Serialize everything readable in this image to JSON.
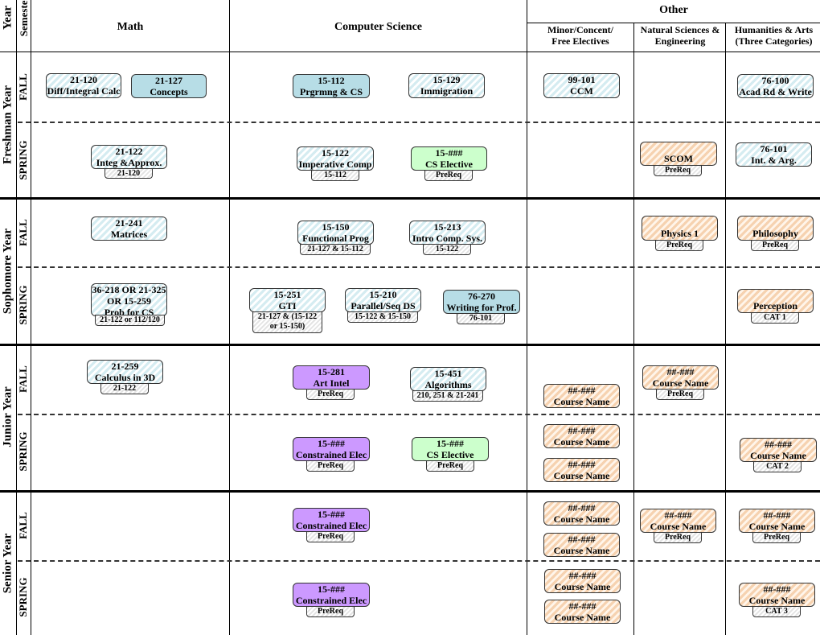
{
  "headers": {
    "year": "Year",
    "semester": "Semester",
    "math": "Math",
    "cs": "Computer Science",
    "other": "Other",
    "minor": "Minor/Concent/ Free Electives",
    "natsci": "Natural Sciences & Engineering",
    "hum": "Humanities & Arts (Three Categories)"
  },
  "years": {
    "freshman": "Freshman Year",
    "sophomore": "Sophomore Year",
    "junior": "Junior Year",
    "senior": "Senior Year"
  },
  "semesters": {
    "fall": "FALL",
    "spring": "SPRING"
  },
  "courses": {
    "f_fall_math1": {
      "code": "21-120",
      "name": "Diff/Integral Calc"
    },
    "f_fall_math2": {
      "code": "21-127",
      "name": "Concepts"
    },
    "f_fall_cs1": {
      "code": "15-112",
      "name": "Prgrmng & CS"
    },
    "f_fall_cs2": {
      "code": "15-129",
      "name": "Immigration"
    },
    "f_fall_minor": {
      "code": "99-101",
      "name": "CCM"
    },
    "f_fall_hum": {
      "code": "76-100",
      "name": "Acad Rd & Write"
    },
    "f_spr_math": {
      "code": "21-122",
      "name": "Integ &Approx.",
      "prereq": "21-120"
    },
    "f_spr_cs1": {
      "code": "15-122",
      "name": "Imperative Comp",
      "prereq": "15-112"
    },
    "f_spr_cs2": {
      "code": "15-###",
      "name": "CS Elective",
      "prereq": "PreReq"
    },
    "f_spr_nat": {
      "code": "",
      "name": "SCOM",
      "prereq": "PreReq"
    },
    "f_spr_hum": {
      "code": "76-101",
      "name": "Int. & Arg."
    },
    "s_fall_math": {
      "code": "21-241",
      "name": "Matrices"
    },
    "s_fall_cs1": {
      "code": "15-150",
      "name": "Functional Prog",
      "prereq": "21-127 & 15-112"
    },
    "s_fall_cs2": {
      "code": "15-213",
      "name": "Intro Comp. Sys.",
      "prereq": "15-122"
    },
    "s_fall_nat": {
      "code": "",
      "name": "Physics 1",
      "prereq": "PreReq"
    },
    "s_fall_hum": {
      "code": "",
      "name": "Philosophy",
      "prereq": "PreReq"
    },
    "s_spr_math": {
      "code": "36-218 OR 21-325",
      "code2": "OR 15-259",
      "name": "Prob for CS",
      "prereq": "21-122 or 112/120"
    },
    "s_spr_cs1": {
      "code": "15-251",
      "name": "GTI",
      "prereq": "21-127 & (15-122",
      "prereq2": "or 15-150)"
    },
    "s_spr_cs2": {
      "code": "15-210",
      "name": "Parallel/Seq DS",
      "prereq": "15-122 & 15-150"
    },
    "s_spr_cs3": {
      "code": "76-270",
      "name": "Writing for Prof.",
      "prereq": "76-101"
    },
    "s_spr_hum": {
      "code": "",
      "name": "Perception",
      "prereq": "CAT 1"
    },
    "j_fall_math": {
      "code": "21-259",
      "name": "Calculus in 3D",
      "prereq": "21-122"
    },
    "j_fall_cs1": {
      "code": "15-281",
      "name": "Art Intel",
      "prereq": "PreReq"
    },
    "j_fall_cs2": {
      "code": "15-451",
      "name": "Algorithms",
      "prereq": "210, 251 & 21-241"
    },
    "j_fall_minor": {
      "code": "##-###",
      "name": "Course Name"
    },
    "j_fall_nat": {
      "code": "##-###",
      "name": "Course Name",
      "prereq": "PreReq"
    },
    "j_spr_cs1": {
      "code": "15-###",
      "name": "Constrained Elec",
      "prereq": "PreReq"
    },
    "j_spr_cs2": {
      "code": "15-###",
      "name": "CS Elective",
      "prereq": "PreReq"
    },
    "j_spr_minor1": {
      "code": "##-###",
      "name": "Course Name"
    },
    "j_spr_minor2": {
      "code": "##-###",
      "name": "Course Name"
    },
    "j_spr_hum": {
      "code": "##-###",
      "name": "Course Name",
      "prereq": "CAT 2"
    },
    "sr_fall_cs": {
      "code": "15-###",
      "name": "Constrained Elec",
      "prereq": "PreReq"
    },
    "sr_fall_minor1": {
      "code": "##-###",
      "name": "Course Name"
    },
    "sr_fall_minor2": {
      "code": "##-###",
      "name": "Course Name"
    },
    "sr_fall_nat": {
      "code": "##-###",
      "name": "Course Name",
      "prereq": "PreReq"
    },
    "sr_fall_hum": {
      "code": "##-###",
      "name": "Course Name",
      "prereq": "PreReq"
    },
    "sr_spr_cs": {
      "code": "15-###",
      "name": "Constrained Elec",
      "prereq": "PreReq"
    },
    "sr_spr_minor1": {
      "code": "##-###",
      "name": "Course Name"
    },
    "sr_spr_minor2": {
      "code": "##-###",
      "name": "Course Name"
    },
    "sr_spr_hum": {
      "code": "##-###",
      "name": "Course Name",
      "prereq": "CAT 3"
    }
  }
}
